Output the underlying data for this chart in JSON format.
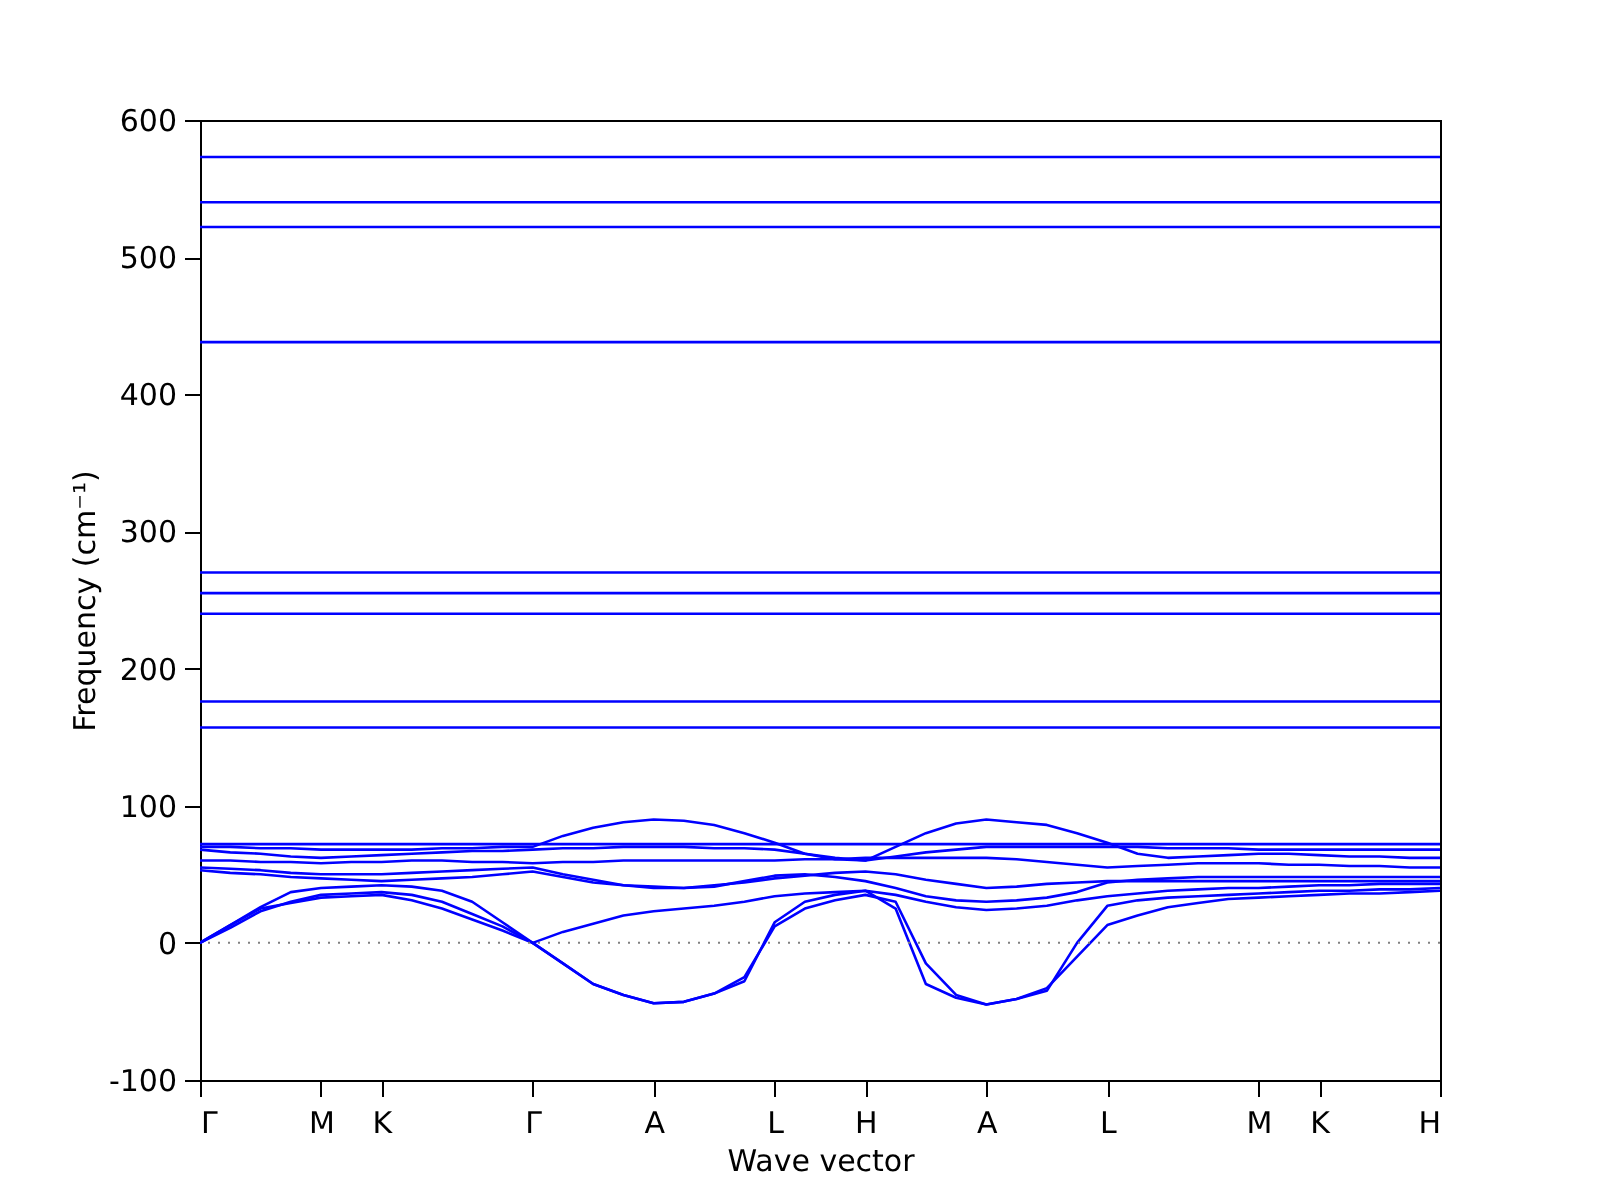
{
  "chart_data": {
    "type": "line",
    "xlabel": "Wave vector",
    "ylabel": "Frequency (cm⁻¹)",
    "legend": false,
    "grid": false,
    "categories": [
      "Γ",
      null,
      null,
      null,
      "M",
      null,
      "K",
      null,
      null,
      null,
      null,
      "Γ",
      null,
      null,
      null,
      "A",
      null,
      null,
      null,
      "L",
      null,
      null,
      "H",
      null,
      null,
      null,
      "A",
      null,
      null,
      null,
      "L",
      null,
      null,
      null,
      null,
      "M",
      null,
      "K",
      null,
      null,
      null,
      "H"
    ],
    "ylim": [
      -100,
      600
    ],
    "yticks": [
      -100,
      0,
      100,
      200,
      300,
      400,
      500,
      600
    ],
    "ref_lines": [
      {
        "axis": "y",
        "value": 0,
        "color": "#808080",
        "line_style": "dotted"
      }
    ],
    "series": [
      {
        "color": "#0000ff",
        "values": [
          0,
          13,
          25,
          29,
          33,
          34,
          35,
          31,
          25,
          17,
          9,
          0,
          -15,
          -30,
          -38,
          -44,
          -43,
          -37,
          -25,
          12,
          25,
          31,
          35,
          30,
          -15,
          -38,
          -45,
          -41,
          -33,
          -10,
          13,
          20,
          26,
          29,
          32,
          33,
          34,
          35,
          36,
          36,
          37,
          38
        ]
      },
      {
        "color": "#0000ff",
        "values": [
          0,
          11,
          23,
          30,
          35,
          36,
          37,
          35,
          30,
          21,
          12,
          0,
          -15,
          -30,
          -38,
          -44,
          -43,
          -37,
          -28,
          15,
          30,
          35,
          38,
          25,
          -30,
          -40,
          -45,
          -41,
          -35,
          0,
          27,
          31,
          33,
          34,
          35,
          36,
          37,
          38,
          38,
          39,
          39,
          40
        ]
      },
      {
        "color": "#0000ff",
        "values": [
          0,
          13,
          26,
          37,
          40,
          41,
          42,
          41,
          38,
          30,
          15,
          0,
          8,
          14,
          20,
          23,
          25,
          27,
          30,
          34,
          36,
          37,
          38,
          35,
          30,
          26,
          24,
          25,
          27,
          31,
          34,
          36,
          38,
          39,
          40,
          40,
          41,
          42,
          42,
          43,
          43,
          43
        ]
      },
      {
        "color": "#0000ff",
        "values": [
          55,
          54,
          53,
          51,
          50,
          50,
          50,
          51,
          52,
          53,
          54,
          55,
          50,
          46,
          42,
          40,
          40,
          41,
          45,
          49,
          50,
          48,
          45,
          40,
          34,
          31,
          30,
          31,
          33,
          37,
          44,
          46,
          47,
          48,
          48,
          48,
          48,
          48,
          48,
          48,
          48,
          48
        ]
      },
      {
        "color": "#0000ff",
        "values": [
          53,
          51,
          50,
          48,
          47,
          46,
          45,
          46,
          47,
          48,
          50,
          52,
          48,
          44,
          42,
          41,
          40,
          42,
          44,
          47,
          49,
          51,
          52,
          50,
          46,
          43,
          40,
          41,
          43,
          44,
          45,
          45,
          45,
          45,
          45,
          45,
          45,
          45,
          45,
          45,
          45,
          45
        ]
      },
      {
        "color": "#0000ff",
        "values": [
          70,
          70,
          69,
          69,
          68,
          68,
          68,
          68,
          69,
          69,
          70,
          70,
          78,
          84,
          88,
          90,
          89,
          86,
          80,
          73,
          65,
          61,
          60,
          70,
          80,
          87,
          90,
          88,
          86,
          80,
          73,
          65,
          62,
          63,
          64,
          65,
          65,
          64,
          63,
          63,
          62,
          62
        ]
      },
      {
        "color": "#0000ff",
        "values": [
          72,
          72,
          72,
          72,
          72,
          72,
          72,
          72,
          72,
          72,
          72,
          72,
          72,
          72,
          72,
          72,
          72,
          72,
          72,
          72,
          72,
          72,
          72,
          72,
          72,
          72,
          72,
          72,
          72,
          72,
          72,
          72,
          72,
          72,
          72,
          72,
          72,
          72,
          72,
          72,
          72,
          72
        ]
      },
      {
        "color": "#0000ff",
        "values": [
          68,
          66,
          65,
          63,
          62,
          63,
          64,
          65,
          66,
          67,
          67,
          68,
          69,
          69,
          70,
          70,
          70,
          69,
          69,
          68,
          65,
          62,
          60,
          63,
          66,
          68,
          70,
          70,
          70,
          70,
          70,
          70,
          69,
          69,
          69,
          68,
          68,
          68,
          68,
          68,
          68,
          68
        ]
      },
      {
        "color": "#0000ff",
        "values": [
          60,
          60,
          59,
          59,
          58,
          59,
          59,
          60,
          60,
          59,
          59,
          58,
          59,
          59,
          60,
          60,
          60,
          60,
          60,
          60,
          61,
          61,
          62,
          62,
          62,
          62,
          62,
          61,
          59,
          57,
          55,
          56,
          57,
          58,
          58,
          58,
          57,
          57,
          56,
          56,
          55,
          55
        ]
      },
      {
        "color": "#0000ff",
        "values": [
          157,
          157,
          157,
          157,
          157,
          157,
          157,
          157,
          157,
          157,
          157,
          157,
          157,
          157,
          157,
          157,
          157,
          157,
          157,
          157,
          157,
          157,
          157,
          157,
          157,
          157,
          157,
          157,
          157,
          157,
          157,
          157,
          157,
          157,
          157,
          157,
          157,
          157,
          157,
          157,
          157,
          157
        ]
      },
      {
        "color": "#0000ff",
        "values": [
          176,
          176,
          176,
          176,
          176,
          176,
          176,
          176,
          176,
          176,
          176,
          176,
          176,
          176,
          176,
          176,
          176,
          176,
          176,
          176,
          176,
          176,
          176,
          176,
          176,
          176,
          176,
          176,
          176,
          176,
          176,
          176,
          176,
          176,
          176,
          176,
          176,
          176,
          176,
          176,
          176,
          176
        ]
      },
      {
        "color": "#0000ff",
        "values": [
          240,
          240,
          240,
          240,
          240,
          240,
          240,
          240,
          240,
          240,
          240,
          240,
          240,
          240,
          240,
          240,
          240,
          240,
          240,
          240,
          240,
          240,
          240,
          240,
          240,
          240,
          240,
          240,
          240,
          240,
          240,
          240,
          240,
          240,
          240,
          240,
          240,
          240,
          240,
          240,
          240,
          240
        ]
      },
      {
        "color": "#0000ff",
        "values": [
          255,
          255,
          255,
          255,
          255,
          255,
          255,
          255,
          255,
          255,
          255,
          255,
          255,
          255,
          255,
          255,
          255,
          255,
          255,
          255,
          255,
          255,
          255,
          255,
          255,
          255,
          255,
          255,
          255,
          255,
          255,
          255,
          255,
          255,
          255,
          255,
          255,
          255,
          255,
          255,
          255,
          255
        ]
      },
      {
        "color": "#0000ff",
        "values": [
          270,
          270,
          270,
          270,
          270,
          270,
          270,
          270,
          270,
          270,
          270,
          270,
          270,
          270,
          270,
          270,
          270,
          270,
          270,
          270,
          270,
          270,
          270,
          270,
          270,
          270,
          270,
          270,
          270,
          270,
          270,
          270,
          270,
          270,
          270,
          270,
          270,
          270,
          270,
          270,
          270,
          270
        ]
      },
      {
        "color": "#0000ff",
        "values": [
          438,
          438,
          438,
          438,
          438,
          438,
          438,
          438,
          438,
          438,
          438,
          438,
          438,
          438,
          438,
          438,
          438,
          438,
          438,
          438,
          438,
          438,
          438,
          438,
          438,
          438,
          438,
          438,
          438,
          438,
          438,
          438,
          438,
          438,
          438,
          438,
          438,
          438,
          438,
          438,
          438,
          438
        ]
      },
      {
        "color": "#0000ff",
        "values": [
          522,
          522,
          522,
          522,
          522,
          522,
          522,
          522,
          522,
          522,
          522,
          522,
          522,
          522,
          522,
          522,
          522,
          522,
          522,
          522,
          522,
          522,
          522,
          522,
          522,
          522,
          522,
          522,
          522,
          522,
          522,
          522,
          522,
          522,
          522,
          522,
          522,
          522,
          522,
          522,
          522,
          522
        ]
      },
      {
        "color": "#0000ff",
        "values": [
          540,
          540,
          540,
          540,
          540,
          540,
          540,
          540,
          540,
          540,
          540,
          540,
          540,
          540,
          540,
          540,
          540,
          540,
          540,
          540,
          540,
          540,
          540,
          540,
          540,
          540,
          540,
          540,
          540,
          540,
          540,
          540,
          540,
          540,
          540,
          540,
          540,
          540,
          540,
          540,
          540,
          540
        ]
      },
      {
        "color": "#0000ff",
        "values": [
          573,
          573,
          573,
          573,
          573,
          573,
          573,
          573,
          573,
          573,
          573,
          573,
          573,
          573,
          573,
          573,
          573,
          573,
          573,
          573,
          573,
          573,
          573,
          573,
          573,
          573,
          573,
          573,
          573,
          573,
          573,
          573,
          573,
          573,
          573,
          573,
          573,
          573,
          573,
          573,
          573,
          573
        ]
      }
    ]
  }
}
